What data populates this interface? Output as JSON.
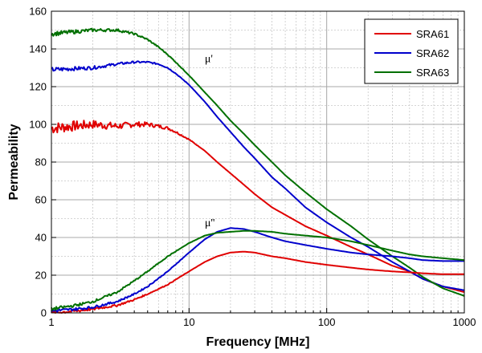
{
  "chart_data": {
    "type": "line",
    "xscale": "log",
    "xlim": [
      1,
      1000
    ],
    "ylim": [
      0,
      160
    ],
    "xlabel": "Frequency [MHz]",
    "ylabel": "Permeability",
    "x_ticks": [
      1,
      10,
      100,
      1000
    ],
    "x_tick_labels": [
      "1",
      "10",
      "100",
      "1000"
    ],
    "y_ticks": [
      0,
      20,
      40,
      60,
      80,
      100,
      120,
      140,
      160
    ],
    "grid": true,
    "legend_position": "top-right",
    "annotations": [
      {
        "text": "μ'",
        "x": 13,
        "y": 133
      },
      {
        "text": "μ''",
        "x": 13,
        "y": 46
      }
    ],
    "colors": {
      "SRA61": "#e00000",
      "SRA62": "#0000cc",
      "SRA63": "#007000"
    },
    "series": [
      {
        "name": "SRA61",
        "part": "mu_prime",
        "x": [
          1,
          2,
          3,
          4,
          5,
          6,
          7,
          8,
          10,
          13,
          16,
          20,
          25,
          30,
          40,
          50,
          70,
          100,
          150,
          200,
          300,
          400,
          500,
          700,
          1000
        ],
        "y": [
          98,
          100,
          99,
          100,
          100,
          99,
          98,
          96,
          92,
          86,
          80,
          74,
          68,
          63,
          56,
          52,
          46,
          41,
          35,
          31,
          25,
          22,
          18,
          14,
          11
        ]
      },
      {
        "name": "SRA62",
        "part": "mu_prime",
        "x": [
          1,
          2,
          3,
          4,
          5,
          6,
          7,
          8,
          10,
          13,
          16,
          20,
          25,
          30,
          40,
          50,
          70,
          100,
          150,
          200,
          300,
          400,
          500,
          700,
          1000
        ],
        "y": [
          129,
          130,
          132,
          133,
          133,
          132,
          130,
          127,
          121,
          112,
          104,
          96,
          88,
          82,
          72,
          66,
          56,
          48,
          40,
          35,
          27,
          22,
          18,
          14,
          12
        ]
      },
      {
        "name": "SRA63",
        "part": "mu_prime",
        "x": [
          1,
          2,
          3,
          4,
          5,
          6,
          7,
          8,
          10,
          13,
          16,
          20,
          25,
          30,
          40,
          50,
          70,
          100,
          150,
          200,
          300,
          400,
          500,
          700,
          1000
        ],
        "y": [
          148,
          150,
          150,
          148,
          145,
          141,
          137,
          133,
          126,
          117,
          110,
          102,
          95,
          89,
          80,
          73,
          64,
          55,
          46,
          39,
          30,
          24,
          19,
          13,
          9
        ]
      },
      {
        "name": "SRA61",
        "part": "mu_double_prime",
        "x": [
          1,
          1.5,
          2,
          3,
          4,
          5,
          7,
          10,
          13,
          16,
          20,
          25,
          30,
          40,
          50,
          70,
          100,
          150,
          200,
          300,
          400,
          500,
          700,
          1000
        ],
        "y": [
          0,
          1,
          2,
          4,
          7,
          10,
          15,
          22,
          27,
          30,
          32,
          32.5,
          32,
          30,
          29,
          27,
          25.5,
          24,
          23,
          22,
          21.5,
          21,
          20.5,
          20.5
        ]
      },
      {
        "name": "SRA62",
        "part": "mu_double_prime",
        "x": [
          1,
          1.5,
          2,
          3,
          4,
          5,
          7,
          10,
          13,
          16,
          20,
          25,
          30,
          40,
          50,
          70,
          100,
          150,
          200,
          300,
          400,
          500,
          700,
          1000
        ],
        "y": [
          1,
          2,
          3,
          6,
          10,
          14,
          22,
          32,
          39,
          43,
          45,
          44.5,
          43,
          40,
          38,
          36,
          34,
          32,
          31,
          30,
          29,
          28,
          27.5,
          27.5
        ]
      },
      {
        "name": "SRA63",
        "part": "mu_double_prime",
        "x": [
          1,
          1.5,
          2,
          3,
          4,
          5,
          7,
          10,
          13,
          16,
          20,
          25,
          30,
          40,
          50,
          70,
          100,
          150,
          200,
          300,
          400,
          500,
          700,
          1000
        ],
        "y": [
          2,
          4,
          6,
          11,
          17,
          22,
          30,
          37,
          41,
          42.5,
          43,
          43.5,
          43.5,
          43,
          42,
          41,
          40,
          38,
          36,
          33,
          31,
          30,
          29,
          28
        ]
      }
    ]
  }
}
